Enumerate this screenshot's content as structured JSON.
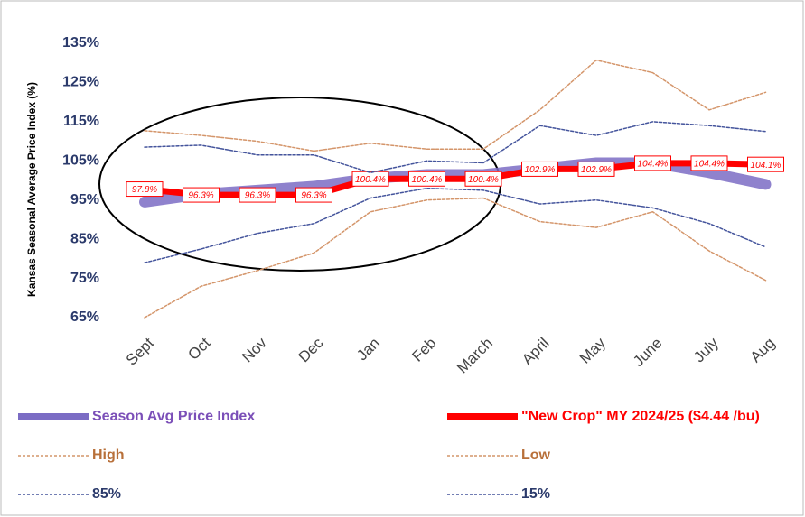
{
  "chart_data": {
    "type": "line",
    "y_label": "Kansas Seasonal Average Price Index (%)",
    "categories": [
      "Sept",
      "Oct",
      "Nov",
      "Dec",
      "Jan",
      "Feb",
      "March",
      "April",
      "May",
      "June",
      "July",
      "Aug"
    ],
    "ylim": [
      65,
      135
    ],
    "yticks": [
      {
        "value": 65,
        "label": "65%"
      },
      {
        "value": 75,
        "label": "75%"
      },
      {
        "value": 85,
        "label": "85%"
      },
      {
        "value": 95,
        "label": "95%"
      },
      {
        "value": 105,
        "label": "105%"
      },
      {
        "value": 115,
        "label": "115%"
      },
      {
        "value": 125,
        "label": "125%"
      },
      {
        "value": 135,
        "label": "135%"
      }
    ],
    "grid": false,
    "series": [
      {
        "name": "Season Avg Price Index",
        "color": "#7b6cc4",
        "style": "thick",
        "values": [
          94.5,
          96.5,
          97.5,
          98.5,
          100.5,
          101.5,
          101.5,
          103,
          104.5,
          104.5,
          102,
          99
        ]
      },
      {
        "name": "\"New Crop\" MY 2024/25 ($4.44 /bu)",
        "color": "#ff0000",
        "style": "thick",
        "values": [
          97.8,
          96.3,
          96.3,
          96.3,
          100.4,
          100.4,
          100.4,
          102.9,
          102.9,
          104.4,
          104.4,
          104.1
        ],
        "value_labels": [
          "97.8%",
          "96.3%",
          "96.3%",
          "96.3%",
          "100.4%",
          "100.4%",
          "100.4%",
          "102.9%",
          "102.9%",
          "104.4%",
          "104.4%",
          "104.1%"
        ]
      },
      {
        "name": "High",
        "color": "#d4956a",
        "style": "dotted",
        "values": [
          112.7,
          111.5,
          110,
          107.5,
          109.5,
          108,
          108,
          118,
          130.7,
          127.5,
          118,
          122.5
        ]
      },
      {
        "name": "Low",
        "color": "#d4956a",
        "style": "dotted",
        "values": [
          65,
          73,
          77,
          81.5,
          92,
          95,
          95.5,
          89.5,
          88,
          92,
          82,
          74.5
        ]
      },
      {
        "name": "85%",
        "color": "#44549c",
        "style": "dotted",
        "values": [
          108.5,
          109,
          106.5,
          106.5,
          102,
          105,
          104.5,
          114,
          111.5,
          115,
          114,
          112.5
        ]
      },
      {
        "name": "15%",
        "color": "#44549c",
        "style": "dotted",
        "values": [
          79,
          82.5,
          86.5,
          89,
          95.5,
          98,
          97.5,
          94,
          95,
          93,
          89,
          83
        ]
      }
    ]
  }
}
